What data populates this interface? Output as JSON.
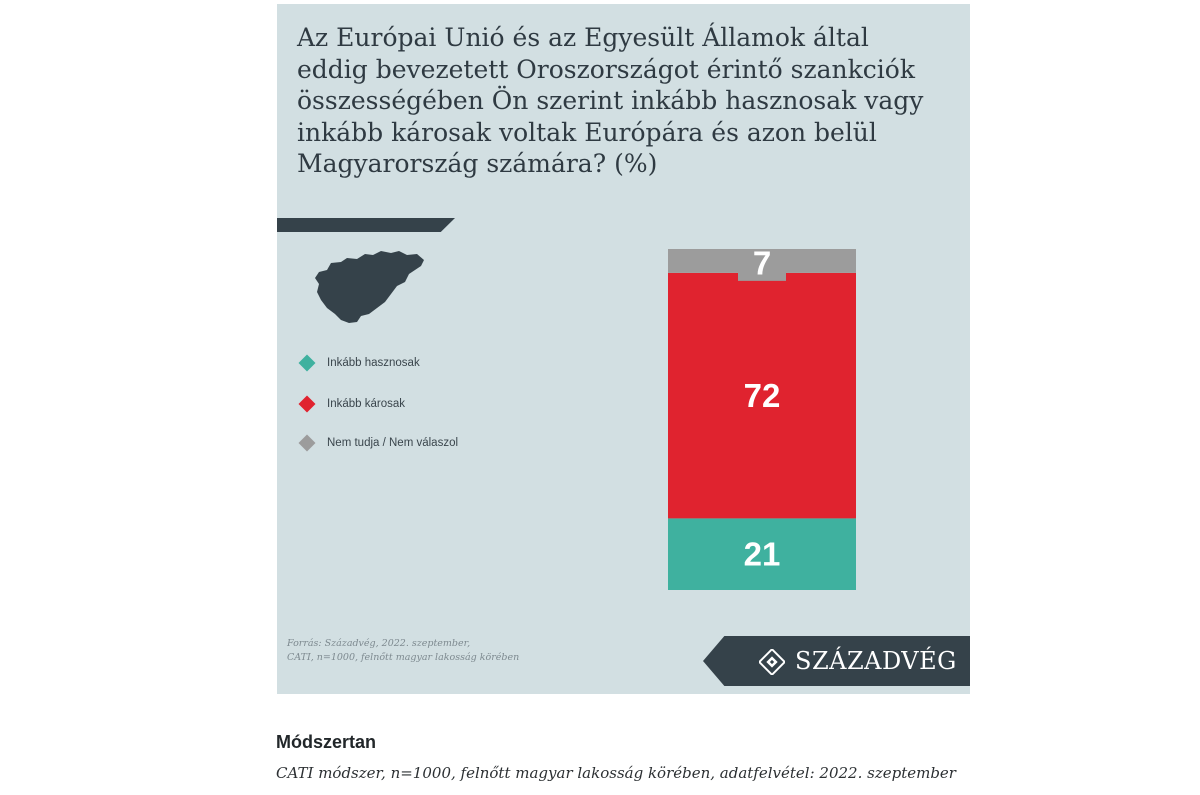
{
  "infographic": {
    "title": "Az Európai Unió és az Egyesült Államok által eddig bevezetett Oroszországot érintő szankciók összességében Ön szerint inkább hasznosak vagy inkább károsak voltak Európára és azon belül Magyarország számára?  (%)",
    "source_line1": "Forrás: Századvég, 2022. szeptember,",
    "source_line2": "CATI, n=1000, felnőtt magyar lakosság körében",
    "logo_text": "SZÁZADVÉG",
    "colors": {
      "background": "#d2dfe2",
      "dark": "#35424a",
      "positive": "#3fb19f",
      "negative": "#e0232f",
      "unknown": "#9c9c9c"
    }
  },
  "chart_data": {
    "type": "bar",
    "stacked": true,
    "unit": "%",
    "categories": [
      ""
    ],
    "series": [
      {
        "name": "Inkább hasznosak",
        "values": [
          21
        ],
        "color": "#3fb19f"
      },
      {
        "name": "Inkább károsak",
        "values": [
          72
        ],
        "color": "#e0232f"
      },
      {
        "name": "Nem tudja / Nem válaszol",
        "values": [
          7
        ],
        "color": "#9c9c9c"
      }
    ],
    "ylim": [
      0,
      100
    ],
    "legend_position": "left"
  },
  "method": {
    "heading": "Módszertan",
    "text": "CATI módszer, n=1000, felnőtt magyar lakosság körében, adatfelvétel: 2022. szeptember"
  }
}
